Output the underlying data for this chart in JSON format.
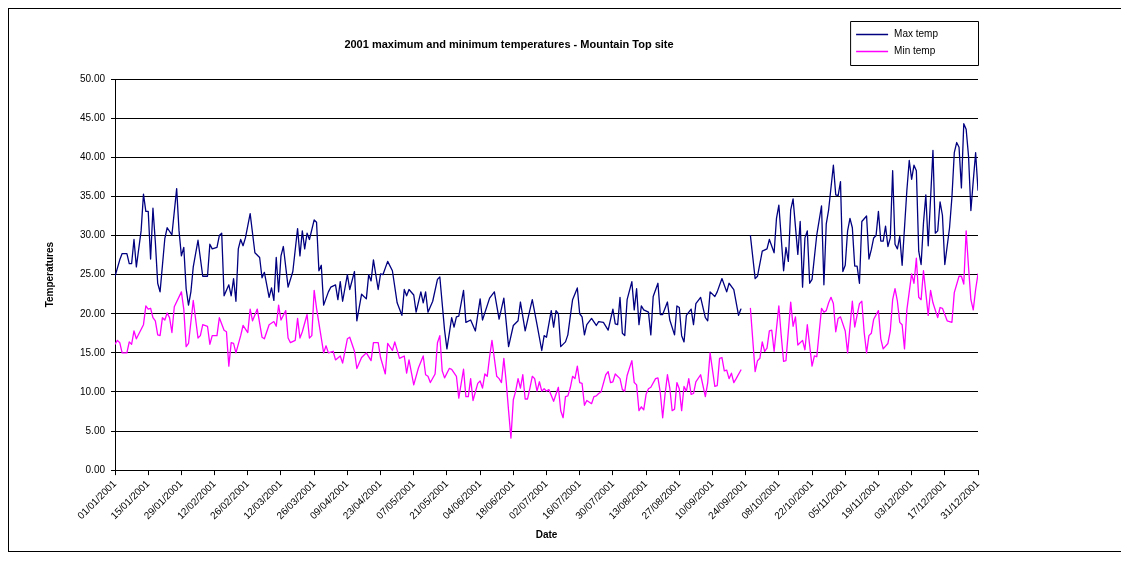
{
  "chart_data": {
    "type": "line",
    "title": "2001 maximum and minimum temperatures - Mountain Top site",
    "xlabel": "Date",
    "ylabel": "Temperatures",
    "xlim": [
      "2001-01-01",
      "2001-12-31"
    ],
    "xticks": [
      {
        "value": "2001-01-01",
        "label": "01/01/2001"
      },
      {
        "value": "2001-01-15",
        "label": "15/01/2001"
      },
      {
        "value": "2001-01-29",
        "label": "29/01/2001"
      },
      {
        "value": "2001-02-12",
        "label": "12/02/2001"
      },
      {
        "value": "2001-02-26",
        "label": "26/02/2001"
      },
      {
        "value": "2001-03-12",
        "label": "12/03/2001"
      },
      {
        "value": "2001-03-26",
        "label": "26/03/2001"
      },
      {
        "value": "2001-04-09",
        "label": "09/04/2001"
      },
      {
        "value": "2001-04-23",
        "label": "23/04/2001"
      },
      {
        "value": "2001-05-07",
        "label": "07/05/2001"
      },
      {
        "value": "2001-05-21",
        "label": "21/05/2001"
      },
      {
        "value": "2001-06-04",
        "label": "04/06/2001"
      },
      {
        "value": "2001-06-18",
        "label": "18/06/2001"
      },
      {
        "value": "2001-07-02",
        "label": "02/07/2001"
      },
      {
        "value": "2001-07-16",
        "label": "16/07/2001"
      },
      {
        "value": "2001-07-30",
        "label": "30/07/2001"
      },
      {
        "value": "2001-08-13",
        "label": "13/08/2001"
      },
      {
        "value": "2001-08-27",
        "label": "27/08/2001"
      },
      {
        "value": "2001-09-10",
        "label": "10/09/2001"
      },
      {
        "value": "2001-09-24",
        "label": "24/09/2001"
      },
      {
        "value": "2001-10-08",
        "label": "08/10/2001"
      },
      {
        "value": "2001-10-22",
        "label": "22/10/2001"
      },
      {
        "value": "2001-11-05",
        "label": "05/11/2001"
      },
      {
        "value": "2001-11-19",
        "label": "19/11/2001"
      },
      {
        "value": "2001-12-03",
        "label": "03/12/2001"
      },
      {
        "value": "2001-12-17",
        "label": "17/12/2001"
      },
      {
        "value": "2001-12-31",
        "label": "31/12/2001"
      }
    ],
    "ylim": [
      0,
      50
    ],
    "yticks": [
      {
        "value": 0,
        "label": "0.00"
      },
      {
        "value": 5,
        "label": "5.00"
      },
      {
        "value": 10,
        "label": "10.00"
      },
      {
        "value": 15,
        "label": "15.00"
      },
      {
        "value": 20,
        "label": "20.00"
      },
      {
        "value": 25,
        "label": "25.00"
      },
      {
        "value": 30,
        "label": "30.00"
      },
      {
        "value": 35,
        "label": "35.00"
      },
      {
        "value": 40,
        "label": "40.00"
      },
      {
        "value": 45,
        "label": "45.00"
      },
      {
        "value": 50,
        "label": "50.00"
      }
    ],
    "grid": "y",
    "legend": "top right",
    "marker": "none",
    "line_style": "solid",
    "series": [
      {
        "name": "Max temp",
        "color": "#000080",
        "x": [
          "2001-01-01",
          "2001-01-03",
          "2001-01-04",
          "2001-01-06",
          "2001-01-07",
          "2001-01-08",
          "2001-01-09",
          "2001-01-10",
          "2001-01-12",
          "2001-01-13",
          "2001-01-14",
          "2001-01-15",
          "2001-01-16",
          "2001-01-17",
          "2001-01-18",
          "2001-01-19",
          "2001-01-20",
          "2001-01-22",
          "2001-01-23",
          "2001-01-25",
          "2001-01-27",
          "2001-01-28",
          "2001-01-29",
          "2001-01-30",
          "2001-01-31",
          "2001-02-01",
          "2001-02-02",
          "2001-02-03",
          "2001-02-05",
          "2001-02-07",
          "2001-02-09",
          "2001-02-10",
          "2001-02-11",
          "2001-02-13",
          "2001-02-14",
          "2001-02-15",
          "2001-02-16",
          "2001-02-18",
          "2001-02-19",
          "2001-02-20",
          "2001-02-21",
          "2001-02-22",
          "2001-02-23",
          "2001-02-24",
          "2001-02-25",
          "2001-02-27",
          "2001-03-01",
          "2001-03-03",
          "2001-03-04",
          "2001-03-05",
          "2001-03-07",
          "2001-03-08",
          "2001-03-09",
          "2001-03-10",
          "2001-03-11",
          "2001-03-12",
          "2001-03-13",
          "2001-03-15",
          "2001-03-17",
          "2001-03-19",
          "2001-03-20",
          "2001-03-21",
          "2001-03-22",
          "2001-03-23",
          "2001-03-24",
          "2001-03-26",
          "2001-03-27",
          "2001-03-28",
          "2001-03-29",
          "2001-03-30",
          "2001-04-01",
          "2001-04-02",
          "2001-04-04",
          "2001-04-05",
          "2001-04-06",
          "2001-04-07",
          "2001-04-09",
          "2001-04-10",
          "2001-04-12",
          "2001-04-13",
          "2001-04-15",
          "2001-04-17",
          "2001-04-18",
          "2001-04-19",
          "2001-04-20",
          "2001-04-22",
          "2001-04-23",
          "2001-04-24",
          "2001-04-26",
          "2001-04-28",
          "2001-04-30",
          "2001-05-02",
          "2001-05-03",
          "2001-05-04",
          "2001-05-05",
          "2001-05-07",
          "2001-05-08",
          "2001-05-10",
          "2001-05-11",
          "2001-05-12",
          "2001-05-13",
          "2001-05-15",
          "2001-05-17",
          "2001-05-18",
          "2001-05-20",
          "2001-05-21",
          "2001-05-23",
          "2001-05-24",
          "2001-05-25",
          "2001-05-26",
          "2001-05-28",
          "2001-05-29",
          "2001-05-31",
          "2001-06-02",
          "2001-06-04",
          "2001-06-05",
          "2001-06-08",
          "2001-06-10",
          "2001-06-12",
          "2001-06-14",
          "2001-06-16",
          "2001-06-18",
          "2001-06-20",
          "2001-06-21",
          "2001-06-23",
          "2001-06-25",
          "2001-06-26",
          "2001-06-28",
          "2001-06-30",
          "2001-07-01",
          "2001-07-02",
          "2001-07-04",
          "2001-07-05",
          "2001-07-06",
          "2001-07-07",
          "2001-07-08",
          "2001-07-10",
          "2001-07-11",
          "2001-07-12",
          "2001-07-13",
          "2001-07-15",
          "2001-07-16",
          "2001-07-17",
          "2001-07-18",
          "2001-07-19",
          "2001-07-21",
          "2001-07-23",
          "2001-07-24",
          "2001-07-26",
          "2001-07-28",
          "2001-07-30",
          "2001-07-31",
          "2001-08-01",
          "2001-08-02",
          "2001-08-03",
          "2001-08-04",
          "2001-08-05",
          "2001-08-07",
          "2001-08-08",
          "2001-08-09",
          "2001-08-10",
          "2001-08-11",
          "2001-08-12",
          "2001-08-14",
          "2001-08-15",
          "2001-08-16",
          "2001-08-18",
          "2001-08-19",
          "2001-08-20",
          "2001-08-22",
          "2001-08-23",
          "2001-08-25",
          "2001-08-26",
          "2001-08-27",
          "2001-08-28",
          "2001-08-29",
          "2001-08-30",
          "2001-09-01",
          "2001-09-02",
          "2001-09-03",
          "2001-09-05",
          "2001-09-07",
          "2001-09-08",
          "2001-09-09",
          "2001-09-11",
          "2001-09-12",
          "2001-09-14",
          "2001-09-16",
          "2001-09-17",
          "2001-09-19",
          "2001-09-21",
          "2001-09-22",
          "2001-09-24",
          "2001-09-26",
          "2001-09-28",
          "2001-09-29",
          "2001-10-01",
          "2001-10-03",
          "2001-10-04",
          "2001-10-06",
          "2001-10-07",
          "2001-10-08",
          "2001-10-10",
          "2001-10-11",
          "2001-10-12",
          "2001-10-13",
          "2001-10-14",
          "2001-10-16",
          "2001-10-17",
          "2001-10-18",
          "2001-10-19",
          "2001-10-20",
          "2001-10-21",
          "2001-10-22",
          "2001-10-24",
          "2001-10-26",
          "2001-10-27",
          "2001-10-28",
          "2001-10-29",
          "2001-10-31",
          "2001-11-01",
          "2001-11-02",
          "2001-11-03",
          "2001-11-04",
          "2001-11-05",
          "2001-11-06",
          "2001-11-07",
          "2001-11-08",
          "2001-11-09",
          "2001-11-10",
          "2001-11-11",
          "2001-11-12",
          "2001-11-14",
          "2001-11-15",
          "2001-11-16",
          "2001-11-17",
          "2001-11-18",
          "2001-11-19",
          "2001-11-20",
          "2001-11-21",
          "2001-11-22",
          "2001-11-23",
          "2001-11-24",
          "2001-11-25",
          "2001-11-26",
          "2001-11-27",
          "2001-11-28",
          "2001-11-29",
          "2001-12-01",
          "2001-12-02",
          "2001-12-03",
          "2001-12-04",
          "2001-12-05",
          "2001-12-06",
          "2001-12-07",
          "2001-12-08",
          "2001-12-09",
          "2001-12-10",
          "2001-12-12",
          "2001-12-13",
          "2001-12-14",
          "2001-12-15",
          "2001-12-16",
          "2001-12-17",
          "2001-12-19",
          "2001-12-20",
          "2001-12-21",
          "2001-12-22",
          "2001-12-23",
          "2001-12-24",
          "2001-12-25",
          "2001-12-26",
          "2001-12-27",
          "2001-12-28",
          "2001-12-29",
          "2001-12-30",
          "2001-12-31"
        ],
        "values": [
          24.8,
          26.9,
          27.7,
          27.7,
          26.4,
          26.4,
          29.5,
          26.0,
          30.6,
          35.3,
          33.1,
          33.1,
          27.0,
          33.5,
          29.2,
          23.9,
          22.8,
          29.6,
          31.0,
          30.1,
          36.0,
          30.6,
          27.4,
          28.5,
          23.2,
          21.1,
          22.8,
          26.0,
          29.4,
          24.8,
          24.8,
          28.9,
          28.3,
          28.5,
          30.0,
          30.3,
          22.3,
          23.7,
          22.3,
          24.5,
          21.6,
          28.3,
          29.5,
          28.7,
          29.7,
          32.8,
          27.8,
          27.2,
          24.6,
          25.3,
          22.1,
          23.3,
          21.7,
          27.2,
          22.8,
          27.4,
          28.6,
          23.4,
          25.4,
          30.9,
          27.4,
          30.6,
          28.3,
          30.3,
          29.5,
          32.0,
          31.7,
          25.5,
          26.2,
          21.1,
          22.8,
          23.4,
          23.7,
          21.8,
          24.1,
          21.6,
          25.0,
          23.1,
          25.4,
          19.1,
          22.5,
          21.9,
          25.0,
          24.2,
          26.9,
          23.1,
          25.1,
          25.0,
          26.7,
          25.5,
          21.4,
          19.8,
          23.1,
          22.3,
          23.1,
          22.4,
          20.2,
          22.8,
          21.4,
          22.8,
          20.2,
          21.6,
          24.4,
          24.7,
          17.9,
          15.5,
          19.5,
          18.3,
          19.6,
          19.7,
          23.0,
          18.9,
          19.2,
          17.8,
          21.9,
          19.2,
          22.0,
          22.8,
          19.3,
          22.0,
          15.8,
          18.5,
          19.1,
          21.5,
          17.8,
          20.5,
          21.8,
          18.6,
          15.3,
          17.2,
          17.0,
          20.4,
          18.3,
          20.4,
          20.0,
          15.8,
          16.4,
          17.3,
          19.6,
          21.8,
          23.3,
          20.0,
          19.6,
          17.3,
          18.6,
          19.4,
          18.5,
          19.0,
          18.9,
          17.9,
          20.6,
          18.7,
          18.6,
          22.1,
          17.5,
          17.2,
          21.8,
          24.1,
          20.5,
          23.2,
          18.6,
          21.0,
          20.5,
          20.2,
          17.3,
          22.2,
          23.9,
          19.9,
          19.9,
          21.5,
          19.2,
          17.3,
          21.0,
          20.8,
          17.2,
          16.4,
          19.8,
          20.6,
          18.6,
          21.3,
          22.1,
          19.5,
          19.1,
          22.8,
          22.2,
          22.8,
          24.5,
          22.8,
          23.9,
          23.1,
          19.8,
          20.6,
          null,
          30.0,
          24.5,
          24.8,
          28.0,
          28.3,
          29.5,
          27.8,
          32.2,
          33.9,
          25.5,
          28.5,
          26.7,
          33.3,
          34.7,
          27.6,
          31.8,
          23.4,
          29.7,
          30.6,
          23.9,
          24.4,
          30.1,
          33.8,
          23.7,
          31.5,
          33.3,
          39.0,
          35.2,
          35.1,
          36.9,
          25.4,
          26.2,
          30.6,
          32.2,
          31.0,
          26.1,
          26.1,
          23.9,
          31.8,
          32.5,
          27.0,
          28.2,
          29.7,
          30.0,
          33.1,
          29.3,
          29.3,
          31.2,
          28.6,
          29.7,
          38.3,
          28.9,
          28.3,
          29.9,
          26.2,
          35.8,
          39.6,
          37.2,
          39.0,
          38.3,
          28.0,
          26.3,
          31.6,
          35.2,
          28.7,
          40.9,
          30.3,
          30.6,
          34.3,
          32.6,
          26.3,
          31.0,
          34.9,
          40.6,
          41.9,
          41.3,
          36.1,
          44.3,
          43.6,
          40.2,
          33.2,
          37.0,
          40.6,
          35.8
        ]
      },
      {
        "name": "Min temp",
        "color": "#ff00ff",
        "x": [
          "2001-01-01",
          "2001-01-02",
          "2001-01-03",
          "2001-01-04",
          "2001-01-06",
          "2001-01-07",
          "2001-01-08",
          "2001-01-09",
          "2001-01-10",
          "2001-01-13",
          "2001-01-14",
          "2001-01-15",
          "2001-01-16",
          "2001-01-17",
          "2001-01-18",
          "2001-01-19",
          "2001-01-20",
          "2001-01-21",
          "2001-01-22",
          "2001-01-23",
          "2001-01-24",
          "2001-01-25",
          "2001-01-26",
          "2001-01-29",
          "2001-01-30",
          "2001-01-31",
          "2001-02-01",
          "2001-02-03",
          "2001-02-05",
          "2001-02-06",
          "2001-02-07",
          "2001-02-09",
          "2001-02-10",
          "2001-02-11",
          "2001-02-13",
          "2001-02-14",
          "2001-02-16",
          "2001-02-17",
          "2001-02-18",
          "2001-02-19",
          "2001-02-20",
          "2001-02-21",
          "2001-02-23",
          "2001-02-24",
          "2001-02-26",
          "2001-02-27",
          "2001-02-28",
          "2001-03-02",
          "2001-03-04",
          "2001-03-05",
          "2001-03-07",
          "2001-03-09",
          "2001-03-10",
          "2001-03-11",
          "2001-03-12",
          "2001-03-14",
          "2001-03-15",
          "2001-03-16",
          "2001-03-18",
          "2001-03-19",
          "2001-03-20",
          "2001-03-21",
          "2001-03-23",
          "2001-03-24",
          "2001-03-25",
          "2001-03-26",
          "2001-03-27",
          "2001-03-30",
          "2001-03-31",
          "2001-04-01",
          "2001-04-03",
          "2001-04-04",
          "2001-04-06",
          "2001-04-07",
          "2001-04-09",
          "2001-04-10",
          "2001-04-12",
          "2001-04-13",
          "2001-04-15",
          "2001-04-17",
          "2001-04-19",
          "2001-04-20",
          "2001-04-22",
          "2001-04-23",
          "2001-04-25",
          "2001-04-26",
          "2001-04-28",
          "2001-04-29",
          "2001-05-01",
          "2001-05-03",
          "2001-05-04",
          "2001-05-05",
          "2001-05-07",
          "2001-05-09",
          "2001-05-11",
          "2001-05-12",
          "2001-05-13",
          "2001-05-14",
          "2001-05-16",
          "2001-05-17",
          "2001-05-18",
          "2001-05-19",
          "2001-05-20",
          "2001-05-22",
          "2001-05-23",
          "2001-05-25",
          "2001-05-26",
          "2001-05-28",
          "2001-05-29",
          "2001-05-30",
          "2001-05-31",
          "2001-06-01",
          "2001-06-03",
          "2001-06-04",
          "2001-06-05",
          "2001-06-06",
          "2001-06-07",
          "2001-06-08",
          "2001-06-09",
          "2001-06-11",
          "2001-06-12",
          "2001-06-13",
          "2001-06-14",
          "2001-06-15",
          "2001-06-16",
          "2001-06-17",
          "2001-06-18",
          "2001-06-19",
          "2001-06-20",
          "2001-06-21",
          "2001-06-22",
          "2001-06-23",
          "2001-06-24",
          "2001-06-25",
          "2001-06-26",
          "2001-06-27",
          "2001-06-28",
          "2001-06-29",
          "2001-06-30",
          "2001-07-01",
          "2001-07-02",
          "2001-07-03",
          "2001-07-05",
          "2001-07-07",
          "2001-07-08",
          "2001-07-09",
          "2001-07-10",
          "2001-07-11",
          "2001-07-12",
          "2001-07-13",
          "2001-07-14",
          "2001-07-15",
          "2001-07-16",
          "2001-07-17",
          "2001-07-18",
          "2001-07-19",
          "2001-07-21",
          "2001-07-22",
          "2001-07-23",
          "2001-07-24",
          "2001-07-25",
          "2001-07-27",
          "2001-07-28",
          "2001-07-29",
          "2001-07-30",
          "2001-07-31",
          "2001-08-02",
          "2001-08-03",
          "2001-08-04",
          "2001-08-05",
          "2001-08-07",
          "2001-08-08",
          "2001-08-09",
          "2001-08-10",
          "2001-08-11",
          "2001-08-12",
          "2001-08-13",
          "2001-08-14",
          "2001-08-15",
          "2001-08-17",
          "2001-08-18",
          "2001-08-19",
          "2001-08-20",
          "2001-08-21",
          "2001-08-22",
          "2001-08-23",
          "2001-08-24",
          "2001-08-25",
          "2001-08-26",
          "2001-08-27",
          "2001-08-28",
          "2001-08-29",
          "2001-08-30",
          "2001-08-31",
          "2001-09-01",
          "2001-09-02",
          "2001-09-03",
          "2001-09-05",
          "2001-09-07",
          "2001-09-08",
          "2001-09-09",
          "2001-09-11",
          "2001-09-12",
          "2001-09-13",
          "2001-09-14",
          "2001-09-15",
          "2001-09-16",
          "2001-09-17",
          "2001-09-18",
          "2001-09-19",
          "2001-09-20",
          "2001-09-22",
          "2001-09-24",
          "2001-09-26",
          "2001-09-28",
          "2001-09-29",
          "2001-09-30",
          "2001-10-01",
          "2001-10-02",
          "2001-10-03",
          "2001-10-04",
          "2001-10-05",
          "2001-10-06",
          "2001-10-08",
          "2001-10-09",
          "2001-10-10",
          "2001-10-11",
          "2001-10-13",
          "2001-10-14",
          "2001-10-15",
          "2001-10-16",
          "2001-10-18",
          "2001-10-19",
          "2001-10-20",
          "2001-10-22",
          "2001-10-23",
          "2001-10-24",
          "2001-10-26",
          "2001-10-27",
          "2001-10-28",
          "2001-10-29",
          "2001-10-30",
          "2001-10-31",
          "2001-11-01",
          "2001-11-02",
          "2001-11-03",
          "2001-11-05",
          "2001-11-06",
          "2001-11-08",
          "2001-11-09",
          "2001-11-11",
          "2001-11-12",
          "2001-11-13",
          "2001-11-14",
          "2001-11-15",
          "2001-11-16",
          "2001-11-17",
          "2001-11-19",
          "2001-11-20",
          "2001-11-21",
          "2001-11-23",
          "2001-11-24",
          "2001-11-25",
          "2001-11-26",
          "2001-11-27",
          "2001-11-28",
          "2001-11-29",
          "2001-11-30",
          "2001-12-01",
          "2001-12-03",
          "2001-12-04",
          "2001-12-05",
          "2001-12-06",
          "2001-12-07",
          "2001-12-08",
          "2001-12-10",
          "2001-12-11",
          "2001-12-12",
          "2001-12-14",
          "2001-12-15",
          "2001-12-16",
          "2001-12-18",
          "2001-12-20",
          "2001-12-21",
          "2001-12-23",
          "2001-12-24",
          "2001-12-25",
          "2001-12-26",
          "2001-12-27",
          "2001-12-28",
          "2001-12-29",
          "2001-12-30",
          "2001-12-31"
        ],
        "values": [
          16.1,
          16.6,
          16.3,
          15.0,
          15.0,
          16.4,
          16.1,
          17.8,
          16.8,
          18.6,
          21.0,
          20.6,
          20.7,
          19.5,
          19.1,
          17.3,
          17.2,
          19.5,
          19.2,
          20.1,
          19.5,
          17.6,
          20.9,
          22.8,
          20.6,
          15.8,
          16.2,
          21.7,
          16.9,
          17.2,
          18.6,
          18.4,
          16.1,
          17.2,
          17.2,
          19.5,
          17.9,
          17.7,
          13.3,
          16.3,
          16.2,
          15.0,
          17.2,
          18.5,
          17.6,
          20.6,
          19.1,
          20.6,
          17.0,
          16.8,
          18.6,
          19.0,
          18.4,
          21.1,
          19.2,
          20.4,
          16.9,
          16.3,
          16.6,
          19.4,
          16.9,
          17.7,
          19.9,
          16.9,
          17.2,
          23.0,
          20.7,
          15.0,
          15.9,
          15.0,
          15.2,
          14.1,
          14.6,
          13.7,
          16.8,
          17.0,
          15.2,
          13.0,
          14.4,
          15.0,
          14.0,
          16.3,
          16.3,
          14.4,
          12.3,
          16.2,
          15.3,
          16.4,
          14.3,
          14.6,
          12.4,
          14.1,
          10.9,
          13.1,
          14.6,
          12.2,
          12.0,
          11.2,
          12.3,
          16.3,
          17.2,
          12.7,
          11.8,
          13.0,
          12.9,
          12.0,
          9.2,
          12.9,
          9.4,
          9.4,
          11.7,
          8.9,
          11.1,
          11.4,
          10.5,
          12.3,
          12.0,
          14.5,
          16.6,
          12.0,
          11.7,
          11.2,
          14.3,
          11.3,
          7.6,
          4.1,
          9.0,
          10.1,
          11.7,
          10.5,
          12.2,
          9.1,
          9.1,
          10.5,
          12.0,
          11.7,
          10.1,
          11.3,
          10.1,
          10.4,
          10.1,
          10.3,
          8.8,
          10.6,
          7.6,
          6.7,
          9.4,
          9.5,
          10.5,
          12.0,
          11.7,
          13.3,
          11.2,
          11.1,
          8.3,
          8.9,
          8.5,
          9.4,
          9.5,
          9.8,
          10.0,
          12.2,
          12.6,
          11.2,
          11.3,
          12.3,
          11.7,
          10.3,
          10.1,
          12.1,
          14.0,
          11.2,
          10.9,
          7.6,
          8.1,
          7.7,
          9.7,
          10.4,
          10.6,
          11.7,
          11.8,
          9.9,
          6.7,
          9.7,
          12.2,
          10.5,
          7.6,
          7.8,
          11.2,
          10.4,
          7.6,
          10.7,
          10.1,
          11.7,
          9.7,
          9.8,
          11.3,
          12.2,
          9.4,
          11.2,
          15.0,
          10.7,
          10.8,
          14.3,
          14.4,
          12.7,
          12.8,
          11.7,
          12.4,
          11.2,
          11.7,
          12.8,
          null,
          20.7,
          12.6,
          14.0,
          14.3,
          16.4,
          15.2,
          15.6,
          17.8,
          17.9,
          15.2,
          21.0,
          17.2,
          13.9,
          14.0,
          21.5,
          18.4,
          19.6,
          16.0,
          16.6,
          15.4,
          18.6,
          13.3,
          14.6,
          14.5,
          20.7,
          20.2,
          20.4,
          21.4,
          22.1,
          21.3,
          17.7,
          19.4,
          19.6,
          17.8,
          15.0,
          21.6,
          18.3,
          21.3,
          21.6,
          17.6,
          15.0,
          17.2,
          17.5,
          19.3,
          20.4,
          16.8,
          15.5,
          16.2,
          17.8,
          21.8,
          23.2,
          21.6,
          18.9,
          18.6,
          15.5,
          20.5,
          25.1,
          23.9,
          27.1,
          22.1,
          21.8,
          25.5,
          19.8,
          23.0,
          21.4,
          19.5,
          20.8,
          20.7,
          19.1,
          18.9,
          22.7,
          24.8,
          24.8,
          23.8,
          30.6,
          26.0,
          21.8,
          20.5,
          23.1,
          25.1
        ]
      }
    ]
  }
}
